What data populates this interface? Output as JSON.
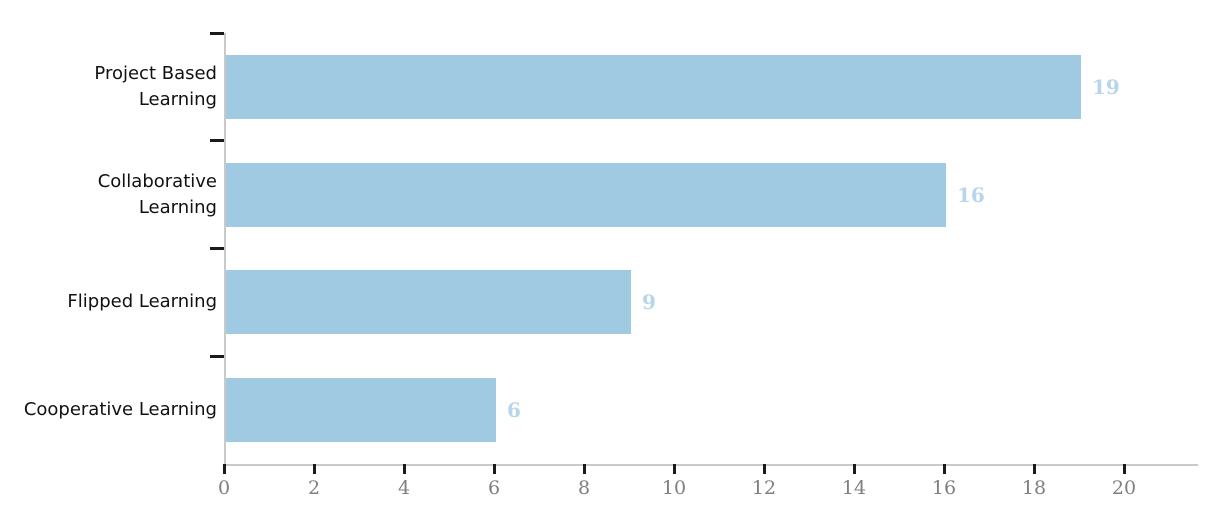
{
  "chart_data": {
    "type": "bar",
    "orientation": "horizontal",
    "title": "",
    "xlabel": "",
    "ylabel": "",
    "categories": [
      "Project Based Learning",
      "Collaborative Learning",
      "Flipped Learning",
      "Cooperative Learning"
    ],
    "category_label_lines": [
      [
        "Project Based",
        "Learning"
      ],
      [
        "Collaborative",
        "Learning"
      ],
      [
        "Flipped Learning"
      ],
      [
        "Cooperative Learning"
      ]
    ],
    "values": [
      19,
      16,
      9,
      6
    ],
    "value_labels": [
      "19",
      "16",
      "9",
      "6"
    ],
    "xticks": [
      0,
      2,
      4,
      6,
      8,
      10,
      12,
      14,
      16,
      18,
      20
    ],
    "xtick_labels": [
      "0",
      "2",
      "4",
      "6",
      "8",
      "10",
      "12",
      "14",
      "16",
      "18",
      "20"
    ],
    "xlim": [
      0,
      21.6
    ],
    "grid": false,
    "legend": "none",
    "colors": {
      "bar_fill": "#a0c9e2",
      "value_label": "#b7d6ea",
      "tick_label": "#7f7f7f",
      "category_label": "#111111",
      "axis_line": "#c9c9c9",
      "tick_mark": "#1a1a1a",
      "background": "#ffffff"
    }
  }
}
